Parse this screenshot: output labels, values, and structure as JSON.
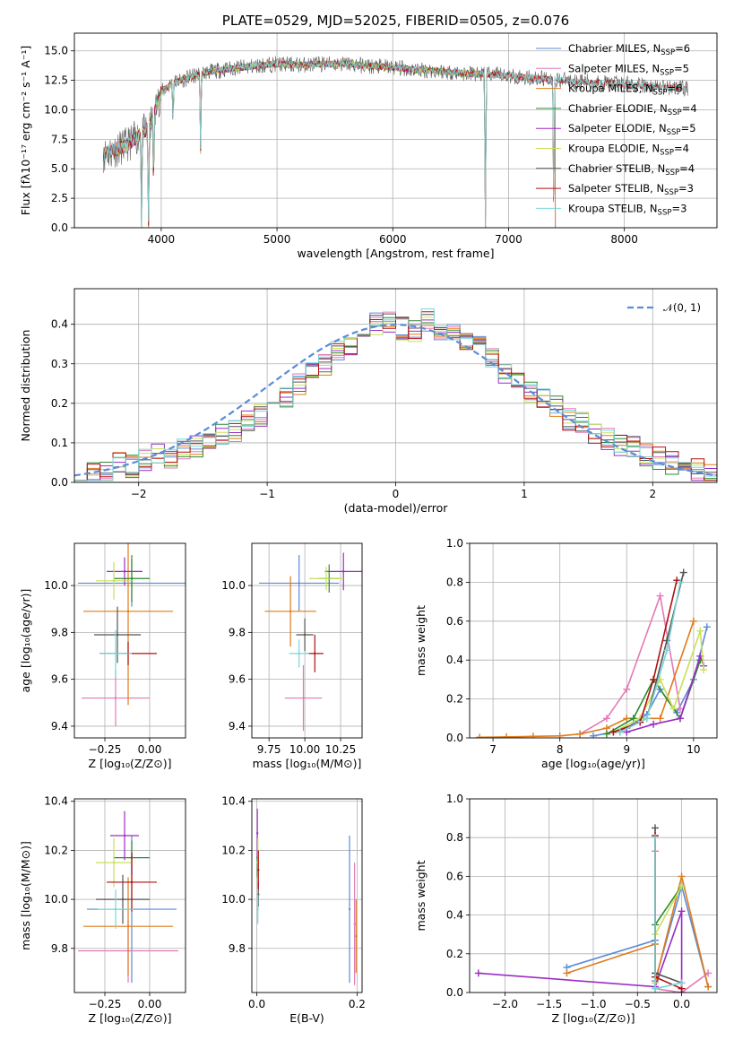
{
  "colors": {
    "Chabrier MILES": "#5b8bd8",
    "Salpeter MILES": "#e27ab8",
    "Kroupa MILES": "#e07b1a",
    "Chabrier ELODIE": "#2f8a2f",
    "Salpeter ELODIE": "#9b2cc4",
    "Kroupa ELODIE": "#c8e05a",
    "Chabrier STELIB": "#555555",
    "Salpeter STELIB": "#b01010",
    "Kroupa STELIB": "#7ad6d6",
    "normal_fit": "#5b8bd8"
  },
  "chart_data": [
    {
      "id": "spectrum",
      "type": "line",
      "title": "PLATE=0529, MJD=52025, FIBERID=0505, z=0.076",
      "xlabel": "wavelength [Angstrom, rest frame]",
      "ylabel": "Flux [fλ10⁻¹⁷ erg cm⁻² s⁻¹ A⁻¹]",
      "xlim": [
        3250,
        8800
      ],
      "ylim": [
        0,
        16.5
      ],
      "xticks": [
        4000,
        5000,
        6000,
        7000,
        8000
      ],
      "yticks": [
        0.0,
        2.5,
        5.0,
        7.5,
        10.0,
        12.5,
        15.0
      ],
      "ytick_labels": [
        "0.0",
        "2.5",
        "5.0",
        "7.5",
        "10.0",
        "12.5",
        "15.0"
      ],
      "legend_position": "top-right",
      "legend": [
        {
          "label": "Chabrier MILES, N",
          "sub": "SSP",
          "suffix": "=6"
        },
        {
          "label": "Salpeter MILES, N",
          "sub": "SSP",
          "suffix": "=5"
        },
        {
          "label": "Kroupa MILES, N",
          "sub": "SSP",
          "suffix": "=6"
        },
        {
          "label": "Chabrier ELODIE, N",
          "sub": "SSP",
          "suffix": "=4"
        },
        {
          "label": "Salpeter ELODIE, N",
          "sub": "SSP",
          "suffix": "=5"
        },
        {
          "label": "Kroupa ELODIE, N",
          "sub": "SSP",
          "suffix": "=4"
        },
        {
          "label": "Chabrier STELIB, N",
          "sub": "SSP",
          "suffix": "=4"
        },
        {
          "label": "Salpeter STELIB, N",
          "sub": "SSP",
          "suffix": "=3"
        },
        {
          "label": "Kroupa STELIB, N",
          "sub": "SSP",
          "suffix": "=3"
        }
      ],
      "data_continuum": {
        "x": [
          3500,
          3700,
          3900,
          4000,
          4100,
          4200,
          4400,
          4600,
          4800,
          5000,
          5200,
          5400,
          5600,
          5800,
          6000,
          6200,
          6400,
          6600,
          6800,
          7000,
          7200,
          7400,
          7600,
          7800,
          8000,
          8200,
          8400,
          8550
        ],
        "y": [
          6.2,
          7.0,
          8.5,
          11.5,
          12.3,
          12.6,
          13.2,
          13.5,
          13.7,
          13.9,
          13.8,
          13.9,
          13.9,
          13.7,
          13.6,
          13.4,
          13.3,
          13.1,
          13.0,
          12.9,
          12.7,
          12.6,
          12.4,
          12.3,
          12.2,
          12.0,
          11.9,
          11.8
        ]
      },
      "absorption_features": [
        {
          "x": 3830,
          "y": 0.0
        },
        {
          "x": 3890,
          "y": 0.0
        },
        {
          "x": 3934,
          "y": 3.5
        },
        {
          "x": 4102,
          "y": 9.0
        },
        {
          "x": 4340,
          "y": 6.5
        },
        {
          "x": 6800,
          "y": 0.0
        },
        {
          "x": 7390,
          "y": 0.0
        }
      ]
    },
    {
      "id": "residual-histogram",
      "type": "bar",
      "xlabel": "(data-model)/error",
      "ylabel": "Normed distribution",
      "xlim": [
        -2.5,
        2.5
      ],
      "ylim": [
        0,
        0.49
      ],
      "xticks": [
        -2,
        -1,
        0,
        1,
        2
      ],
      "xtick_labels": [
        "−2",
        "−1",
        "0",
        "1",
        "2"
      ],
      "yticks": [
        0.0,
        0.1,
        0.2,
        0.3,
        0.4
      ],
      "ytick_labels": [
        "0.0",
        "0.1",
        "0.2",
        "0.3",
        "0.4"
      ],
      "bin_width": 0.1,
      "bin_start": -2.5,
      "legend_position": "top-right",
      "legend": [
        {
          "label": "𝒩(0, 1)"
        }
      ],
      "envelope": [
        0.02,
        0.02,
        0.03,
        0.05,
        0.04,
        0.06,
        0.07,
        0.06,
        0.08,
        0.09,
        0.1,
        0.12,
        0.13,
        0.16,
        0.17,
        0.2,
        0.22,
        0.25,
        0.28,
        0.3,
        0.33,
        0.35,
        0.37,
        0.4,
        0.41,
        0.39,
        0.38,
        0.41,
        0.39,
        0.38,
        0.35,
        0.34,
        0.31,
        0.28,
        0.25,
        0.23,
        0.21,
        0.19,
        0.16,
        0.15,
        0.12,
        0.11,
        0.09,
        0.09,
        0.07,
        0.06,
        0.05,
        0.04,
        0.03,
        0.02
      ]
    },
    {
      "id": "age-vs-Z",
      "type": "scatter",
      "xlabel": "Z [log₁₀(Z/Z⊙)]",
      "ylabel": "age  [log₁₀(age/yr)]",
      "xlim": [
        -0.42,
        0.2
      ],
      "ylim": [
        9.35,
        10.18
      ],
      "xticks": [
        -0.25,
        0.0
      ],
      "xtick_labels": [
        "−0.25",
        "0.00"
      ],
      "yticks": [
        9.4,
        9.6,
        9.8,
        10.0
      ],
      "ytick_labels": [
        "9.4",
        "9.6",
        "9.8",
        "10.0"
      ],
      "points": [
        {
          "model": "Chabrier MILES",
          "x": -0.1,
          "xerr": 0.3,
          "y": 10.01,
          "yerr": 0.1
        },
        {
          "model": "Salpeter MILES",
          "x": -0.19,
          "xerr": 0.19,
          "y": 9.52,
          "yerr": 0.12
        },
        {
          "model": "Kroupa MILES",
          "x": -0.12,
          "xerr": 0.25,
          "y": 9.89,
          "yerr": 0.4
        },
        {
          "model": "Chabrier ELODIE",
          "x": -0.1,
          "xerr": 0.1,
          "y": 10.03,
          "yerr": 0.1
        },
        {
          "model": "Salpeter ELODIE",
          "x": -0.14,
          "xerr": 0.1,
          "y": 10.06,
          "yerr": 0.06
        },
        {
          "model": "Kroupa ELODIE",
          "x": -0.2,
          "xerr": 0.1,
          "y": 10.02,
          "yerr": 0.08
        },
        {
          "model": "Chabrier STELIB",
          "x": -0.18,
          "xerr": 0.13,
          "y": 9.79,
          "yerr": 0.12
        },
        {
          "model": "Salpeter STELIB",
          "x": -0.12,
          "xerr": 0.16,
          "y": 9.71,
          "yerr": 0.05
        },
        {
          "model": "Kroupa STELIB",
          "x": -0.19,
          "xerr": 0.09,
          "y": 9.71,
          "yerr": 0.1
        }
      ]
    },
    {
      "id": "age-vs-mass",
      "type": "scatter",
      "xlabel": "mass [log₁₀(M/M⊙)]",
      "ylabel": "",
      "xlim": [
        9.63,
        10.4
      ],
      "ylim": [
        9.35,
        10.18
      ],
      "xticks": [
        9.75,
        10.0,
        10.25
      ],
      "xtick_labels": [
        "9.75",
        "10.00",
        "10.25"
      ],
      "yticks": [
        9.4,
        9.6,
        9.8,
        10.0
      ],
      "ytick_labels": [
        "9.4",
        "9.6",
        "9.8",
        "10.0"
      ],
      "points": [
        {
          "model": "Chabrier MILES",
          "x": 9.96,
          "xerr": 0.28,
          "y": 10.01,
          "yerr": 0.12
        },
        {
          "model": "Salpeter MILES",
          "x": 9.99,
          "xerr": 0.13,
          "y": 9.52,
          "yerr": 0.14
        },
        {
          "model": "Kroupa MILES",
          "x": 9.9,
          "xerr": 0.18,
          "y": 9.89,
          "yerr": 0.15
        },
        {
          "model": "Chabrier ELODIE",
          "x": 10.17,
          "xerr": 0.07,
          "y": 10.03,
          "yerr": 0.06
        },
        {
          "model": "Salpeter ELODIE",
          "x": 10.27,
          "xerr": 0.13,
          "y": 10.06,
          "yerr": 0.08
        },
        {
          "model": "Kroupa ELODIE",
          "x": 10.15,
          "xerr": 0.12,
          "y": 10.03,
          "yerr": 0.05
        },
        {
          "model": "Chabrier STELIB",
          "x": 10.0,
          "xerr": 0.06,
          "y": 9.79,
          "yerr": 0.07
        },
        {
          "model": "Salpeter STELIB",
          "x": 10.07,
          "xerr": 0.06,
          "y": 9.71,
          "yerr": 0.08
        },
        {
          "model": "Kroupa STELIB",
          "x": 9.96,
          "xerr": 0.07,
          "y": 9.71,
          "yerr": 0.06
        }
      ]
    },
    {
      "id": "mass-weight-vs-age",
      "type": "line",
      "xlabel": "age  [log₁₀(age/yr)]",
      "ylabel": "mass weight",
      "xlim": [
        6.65,
        10.35
      ],
      "ylim": [
        0,
        1
      ],
      "xticks": [
        7,
        8,
        9,
        10
      ],
      "xtick_labels": [
        "7",
        "8",
        "9",
        "10"
      ],
      "yticks": [
        0.0,
        0.2,
        0.4,
        0.6,
        0.8,
        1.0
      ],
      "ytick_labels": [
        "0.0",
        "0.2",
        "0.4",
        "0.6",
        "0.8",
        "1.0"
      ],
      "grid": true,
      "series": [
        {
          "model": "Chabrier MILES",
          "x": [
            8.5,
            8.8,
            9.0,
            9.3,
            9.5,
            9.75,
            10.0,
            10.2
          ],
          "y": [
            0.01,
            0.03,
            0.05,
            0.12,
            0.25,
            0.13,
            0.3,
            0.57
          ]
        },
        {
          "model": "Salpeter MILES",
          "x": [
            8.3,
            8.7,
            9.0,
            9.5,
            9.8
          ],
          "y": [
            0.02,
            0.1,
            0.25,
            0.73,
            0.15
          ]
        },
        {
          "model": "Kroupa MILES",
          "x": [
            6.8,
            7.2,
            7.6,
            8.0,
            8.3,
            8.7,
            9.0,
            9.5,
            10.0
          ],
          "y": [
            0.003,
            0.005,
            0.008,
            0.01,
            0.02,
            0.05,
            0.1,
            0.1,
            0.6
          ]
        },
        {
          "model": "Chabrier ELODIE",
          "x": [
            8.7,
            9.1,
            9.4,
            9.8,
            10.1
          ],
          "y": [
            0.02,
            0.1,
            0.3,
            0.1,
            0.4
          ]
        },
        {
          "model": "Salpeter ELODIE",
          "x": [
            9.0,
            9.4,
            9.8,
            10.1,
            10.15
          ],
          "y": [
            0.03,
            0.07,
            0.1,
            0.42,
            0.37
          ]
        },
        {
          "model": "Kroupa ELODIE",
          "x": [
            8.8,
            9.2,
            9.5,
            9.7,
            10.1,
            10.15
          ],
          "y": [
            0.03,
            0.1,
            0.3,
            0.15,
            0.55,
            0.35
          ]
        },
        {
          "model": "Chabrier STELIB",
          "x": [
            8.9,
            9.3,
            9.6,
            9.85
          ],
          "y": [
            0.03,
            0.1,
            0.5,
            0.85
          ]
        },
        {
          "model": "Salpeter STELIB",
          "x": [
            8.8,
            9.2,
            9.4,
            9.75
          ],
          "y": [
            0.03,
            0.08,
            0.3,
            0.81
          ]
        },
        {
          "model": "Kroupa STELIB",
          "x": [
            8.9,
            9.3,
            9.6,
            9.8
          ],
          "y": [
            0.03,
            0.1,
            0.45,
            0.8
          ]
        }
      ]
    },
    {
      "id": "mass-vs-Z",
      "type": "scatter",
      "xlabel": "Z [log₁₀(Z/Z⊙)]",
      "ylabel": "mass [log₁₀(M/M⊙)]",
      "xlim": [
        -0.42,
        0.2
      ],
      "ylim": [
        9.62,
        10.41
      ],
      "xticks": [
        -0.25,
        0.0
      ],
      "xtick_labels": [
        "−0.25",
        "0.00"
      ],
      "yticks": [
        9.8,
        10.0,
        10.2,
        10.4
      ],
      "ytick_labels": [
        "9.8",
        "10.0",
        "10.2",
        "10.4"
      ],
      "points": [
        {
          "model": "Chabrier MILES",
          "x": -0.1,
          "xerr": 0.25,
          "y": 9.96,
          "yerr": 0.3
        },
        {
          "model": "Salpeter MILES",
          "x": -0.12,
          "xerr": 0.28,
          "y": 9.79,
          "yerr": 0.13
        },
        {
          "model": "Kroupa MILES",
          "x": -0.12,
          "xerr": 0.25,
          "y": 9.89,
          "yerr": 0.2
        },
        {
          "model": "Chabrier ELODIE",
          "x": -0.1,
          "xerr": 0.1,
          "y": 10.17,
          "yerr": 0.07
        },
        {
          "model": "Salpeter ELODIE",
          "x": -0.14,
          "xerr": 0.08,
          "y": 10.26,
          "yerr": 0.1
        },
        {
          "model": "Kroupa ELODIE",
          "x": -0.2,
          "xerr": 0.1,
          "y": 10.15,
          "yerr": 0.1
        },
        {
          "model": "Chabrier STELIB",
          "x": -0.15,
          "xerr": 0.15,
          "y": 10.0,
          "yerr": 0.1
        },
        {
          "model": "Salpeter STELIB",
          "x": -0.1,
          "xerr": 0.14,
          "y": 10.07,
          "yerr": 0.12
        },
        {
          "model": "Kroupa STELIB",
          "x": -0.19,
          "xerr": 0.1,
          "y": 9.96,
          "yerr": 0.08
        }
      ]
    },
    {
      "id": "mass-vs-EBV",
      "type": "scatter",
      "xlabel": "E(B-V)",
      "ylabel": "",
      "xlim": [
        -0.01,
        0.21
      ],
      "ylim": [
        9.62,
        10.41
      ],
      "xticks": [
        0.0,
        0.2
      ],
      "xtick_labels": [
        "0.0",
        "0.2"
      ],
      "yticks": [
        9.8,
        10.0,
        10.2,
        10.4
      ],
      "ytick_labels": [
        "9.8",
        "10.0",
        "10.2",
        "10.4"
      ],
      "points": [
        {
          "model": "Chabrier MILES",
          "x": 0.185,
          "xerr": 0.0,
          "y": 9.96,
          "yerr": 0.3
        },
        {
          "model": "Salpeter MILES",
          "x": 0.195,
          "xerr": 0.0,
          "y": 9.9,
          "yerr": 0.25
        },
        {
          "model": "Kroupa MILES",
          "x": 0.198,
          "xerr": 0.0,
          "y": 9.85,
          "yerr": 0.15
        },
        {
          "model": "Chabrier ELODIE",
          "x": 0.001,
          "xerr": 0.0,
          "y": 10.17,
          "yerr": 0.08
        },
        {
          "model": "Salpeter ELODIE",
          "x": 0.001,
          "xerr": 0.0,
          "y": 10.27,
          "yerr": 0.1
        },
        {
          "model": "Kroupa ELODIE",
          "x": 0.002,
          "xerr": 0.0,
          "y": 10.15,
          "yerr": 0.1
        },
        {
          "model": "Chabrier STELIB",
          "x": 0.003,
          "xerr": 0.0,
          "y": 10.02,
          "yerr": 0.05
        },
        {
          "model": "Salpeter STELIB",
          "x": 0.003,
          "xerr": 0.0,
          "y": 10.12,
          "yerr": 0.08
        },
        {
          "model": "Kroupa STELIB",
          "x": 0.002,
          "xerr": 0.0,
          "y": 9.96,
          "yerr": 0.06
        }
      ]
    },
    {
      "id": "mass-weight-vs-Z",
      "type": "line",
      "xlabel": "Z [log₁₀(Z/Z⊙)]",
      "ylabel": "mass weight",
      "xlim": [
        -2.4,
        0.4
      ],
      "ylim": [
        0,
        1
      ],
      "xticks": [
        -2.0,
        -1.5,
        -1.0,
        -0.5,
        0.0
      ],
      "xtick_labels": [
        "−2.0",
        "−1.5",
        "−1.0",
        "−0.5",
        "0.0"
      ],
      "yticks": [
        0.0,
        0.2,
        0.4,
        0.6,
        0.8,
        1.0
      ],
      "ytick_labels": [
        "0.0",
        "0.2",
        "0.4",
        "0.6",
        "0.8",
        "1.0"
      ],
      "grid": true,
      "series": [
        {
          "model": "Chabrier MILES",
          "x": [
            -1.3,
            -0.3,
            -0.3,
            0.0,
            0.3
          ],
          "y": [
            0.13,
            0.27,
            0.06,
            0.55,
            0.03
          ]
        },
        {
          "model": "Salpeter MILES",
          "x": [
            -0.3,
            -0.3,
            0.0,
            0.3
          ],
          "y": [
            0.73,
            0.02,
            0.0,
            0.1
          ]
        },
        {
          "model": "Kroupa MILES",
          "x": [
            -1.3,
            -0.3,
            -0.3,
            0.0,
            0.3
          ],
          "y": [
            0.1,
            0.25,
            0.05,
            0.6,
            0.03
          ]
        },
        {
          "model": "Chabrier ELODIE",
          "x": [
            -0.3,
            -0.3,
            0.0
          ],
          "y": [
            0.1,
            0.35,
            0.55
          ]
        },
        {
          "model": "Salpeter ELODIE",
          "x": [
            -2.3,
            -0.3,
            0.0,
            0.0
          ],
          "y": [
            0.1,
            0.03,
            0.42,
            0.0
          ]
        },
        {
          "model": "Kroupa ELODIE",
          "x": [
            -0.3,
            -0.3,
            0.0
          ],
          "y": [
            0.05,
            0.3,
            0.55
          ]
        },
        {
          "model": "Chabrier STELIB",
          "x": [
            -0.3,
            -0.3,
            0.0
          ],
          "y": [
            0.85,
            0.1,
            0.05
          ]
        },
        {
          "model": "Salpeter STELIB",
          "x": [
            -0.3,
            -0.3,
            0.0
          ],
          "y": [
            0.81,
            0.08,
            0.02
          ]
        },
        {
          "model": "Kroupa STELIB",
          "x": [
            -0.3,
            -0.3,
            0.0
          ],
          "y": [
            0.8,
            0.02,
            0.05
          ]
        }
      ]
    }
  ]
}
